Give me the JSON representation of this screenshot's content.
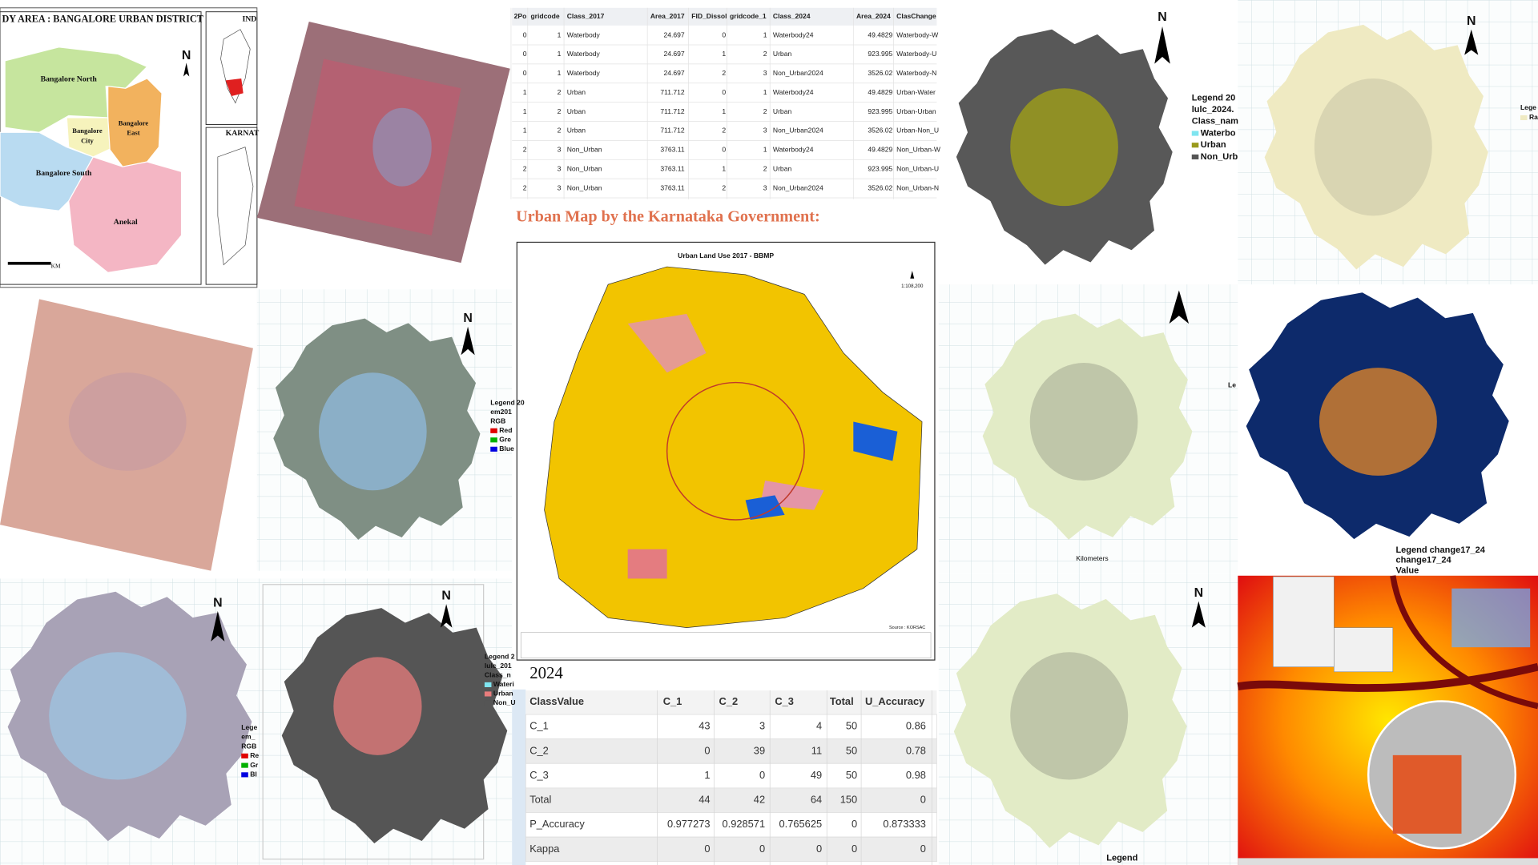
{
  "study_area": {
    "title": "DY AREA : BANGALORE URBAN DISTRICT",
    "regions": [
      "Bangalore North",
      "Bangalore",
      "City",
      "Bangalore",
      "East",
      "Bangalore South",
      "Anekal"
    ],
    "inset_labels": [
      "IND",
      "KARNAT"
    ],
    "scale_unit": "KM"
  },
  "north": "N",
  "top_table": {
    "headers": [
      "2Po",
      "gridcode",
      "Class_2017",
      "Area_2017",
      "FID_Dissol",
      "gridcode_1",
      "Class_2024",
      "Area_2024",
      "ClasChange"
    ],
    "rows": [
      [
        0,
        1,
        "Waterbody",
        24.697,
        0,
        1,
        "Waterbody24",
        49.4829,
        "Waterbody-W"
      ],
      [
        0,
        1,
        "Waterbody",
        24.697,
        1,
        2,
        "Urban",
        923.995,
        "Waterbody-U"
      ],
      [
        0,
        1,
        "Waterbody",
        24.697,
        2,
        3,
        "Non_Urban2024",
        3526.02,
        "Waterbody-N"
      ],
      [
        1,
        2,
        "Urban",
        711.712,
        0,
        1,
        "Waterbody24",
        49.4829,
        "Urban-Water"
      ],
      [
        1,
        2,
        "Urban",
        711.712,
        1,
        2,
        "Urban",
        923.995,
        "Urban-Urban"
      ],
      [
        1,
        2,
        "Urban",
        711.712,
        2,
        3,
        "Non_Urban2024",
        3526.02,
        "Urban-Non_U"
      ],
      [
        2,
        3,
        "Non_Urban",
        3763.11,
        0,
        1,
        "Waterbody24",
        49.4829,
        "Non_Urban-W"
      ],
      [
        2,
        3,
        "Non_Urban",
        3763.11,
        1,
        2,
        "Urban",
        923.995,
        "Non_Urban-U"
      ],
      [
        2,
        3,
        "Non_Urban",
        3763.11,
        2,
        3,
        "Non_Urban2024",
        3526.02,
        "Non_Urban-N"
      ]
    ]
  },
  "urban_map": {
    "heading": "Urban Map by the Karnataka Government:",
    "title": "Urban Land Use 2017 -  BBMP",
    "scale": "1:108,200",
    "source": "Source : KORSAC"
  },
  "accuracy_table": {
    "year": "2024",
    "headers": [
      "ClassValue",
      "C_1",
      "C_2",
      "C_3",
      "Total",
      "U_Accuracy"
    ],
    "rows": [
      [
        "C_1",
        43,
        3,
        4,
        50,
        0.86
      ],
      [
        "C_2",
        0,
        39,
        11,
        50,
        0.78
      ],
      [
        "C_3",
        1,
        0,
        49,
        50,
        0.98
      ],
      [
        "Total",
        44,
        42,
        64,
        150,
        0
      ],
      [
        "P_Accuracy",
        0.977273,
        0.928571,
        0.765625,
        0,
        0.873333
      ],
      [
        "Kappa",
        0,
        0,
        0,
        0,
        0
      ]
    ]
  },
  "legends": {
    "rgb_2017": [
      "Legend 20",
      "em201",
      "RGB",
      "Red",
      "Gre",
      "Blue"
    ],
    "rgb_bottom": [
      "Lege",
      "em_",
      "RGB",
      "Re",
      "Gr",
      "Bl"
    ],
    "lulc_2017": [
      "Legend 2",
      "lulc_201",
      "Class_n",
      "Wateri",
      "Urban",
      "Non_U"
    ],
    "lulc_2024": [
      "Legend 20",
      "lulc_2024.",
      "Class_nam",
      "Waterbo",
      "Urban",
      "Non_Urb"
    ],
    "raster": [
      "Lege",
      "Ra"
    ],
    "partial": "Le",
    "change": [
      "Legend change17_24",
      "change17_24",
      "Value"
    ],
    "kilometers": "Kilometers",
    "bottom": "Legend"
  }
}
